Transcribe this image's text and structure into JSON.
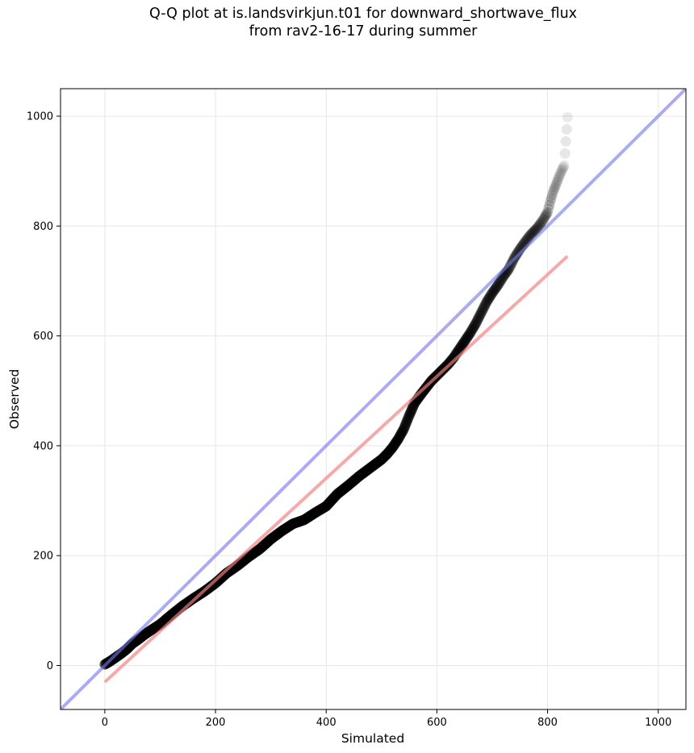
{
  "chart_data": {
    "type": "scatter",
    "title_line1": "Q-Q plot at is.landsvirkjun.t01 for downward_shortwave_flux",
    "title_line2": "from rav2-16-17 during summer",
    "xlabel": "Simulated",
    "ylabel": "Observed",
    "xlim": [
      -80,
      1050
    ],
    "ylim": [
      -80,
      1050
    ],
    "x_ticks": [
      0,
      200,
      400,
      600,
      800,
      1000
    ],
    "y_ticks": [
      0,
      200,
      400,
      600,
      800,
      1000
    ],
    "grid": true,
    "reference_line": {
      "name": "1:1 line",
      "color": "#7777ee",
      "x": [
        -80,
        1050
      ],
      "y": [
        -80,
        1050
      ]
    },
    "fit_line": {
      "name": "regression fit",
      "color": "#f08080",
      "x": [
        0,
        836
      ],
      "y": [
        -30,
        745
      ]
    },
    "points_color": "#000000",
    "qq_points": {
      "x": [
        0,
        10,
        20,
        30,
        40,
        50,
        60,
        70,
        80,
        100,
        120,
        140,
        160,
        180,
        200,
        220,
        240,
        260,
        280,
        300,
        320,
        340,
        360,
        380,
        400,
        420,
        440,
        460,
        480,
        500,
        510,
        520,
        530,
        540,
        550,
        560,
        570,
        580,
        590,
        600,
        610,
        620,
        630,
        640,
        650,
        660,
        670,
        680,
        690,
        700,
        710,
        720,
        730,
        740,
        750,
        760,
        770,
        780,
        790,
        800,
        805,
        810,
        815,
        820,
        825,
        830,
        836
      ],
      "y": [
        2,
        8,
        15,
        22,
        30,
        40,
        47,
        55,
        62,
        75,
        92,
        108,
        122,
        135,
        150,
        168,
        182,
        198,
        212,
        230,
        245,
        258,
        265,
        278,
        290,
        312,
        328,
        345,
        360,
        375,
        385,
        397,
        412,
        430,
        455,
        478,
        492,
        505,
        518,
        528,
        538,
        548,
        560,
        575,
        590,
        605,
        622,
        642,
        662,
        678,
        692,
        708,
        722,
        742,
        758,
        772,
        785,
        795,
        808,
        825,
        845,
        862,
        875,
        888,
        900,
        910,
        998
      ]
    }
  }
}
